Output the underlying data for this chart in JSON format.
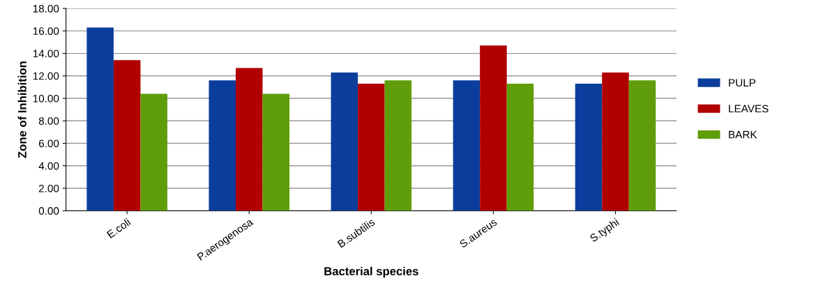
{
  "chart_data": {
    "type": "bar",
    "xlabel": "Bacterial species",
    "ylabel": "Zone of Inhibition",
    "categories": [
      "E.coli",
      "P.aerogenosa",
      "B.subtilis",
      "S.aureus",
      "S.typhi"
    ],
    "series": [
      {
        "name": "PULP",
        "color": "#0a3d9c",
        "values": [
          16.3,
          11.6,
          12.3,
          11.6,
          11.3
        ]
      },
      {
        "name": "LEAVES",
        "color": "#b00000",
        "values": [
          13.4,
          12.7,
          11.3,
          14.7,
          12.3
        ]
      },
      {
        "name": "BARK",
        "color": "#5f9e0a",
        "values": [
          10.4,
          10.4,
          11.6,
          11.3,
          11.6
        ]
      }
    ],
    "ylim": [
      0,
      18
    ],
    "yticks": [
      {
        "value": 0,
        "label": "0.00"
      },
      {
        "value": 2,
        "label": "2.00"
      },
      {
        "value": 4,
        "label": "4.00"
      },
      {
        "value": 6,
        "label": "6.00"
      },
      {
        "value": 8,
        "label": "8.00"
      },
      {
        "value": 10,
        "label": "10.00"
      },
      {
        "value": 12,
        "label": "12.00"
      },
      {
        "value": 14,
        "label": "14.00"
      },
      {
        "value": 16,
        "label": "16.00"
      },
      {
        "value": 18,
        "label": "18.00"
      }
    ],
    "grid": "y",
    "legend": "right"
  }
}
